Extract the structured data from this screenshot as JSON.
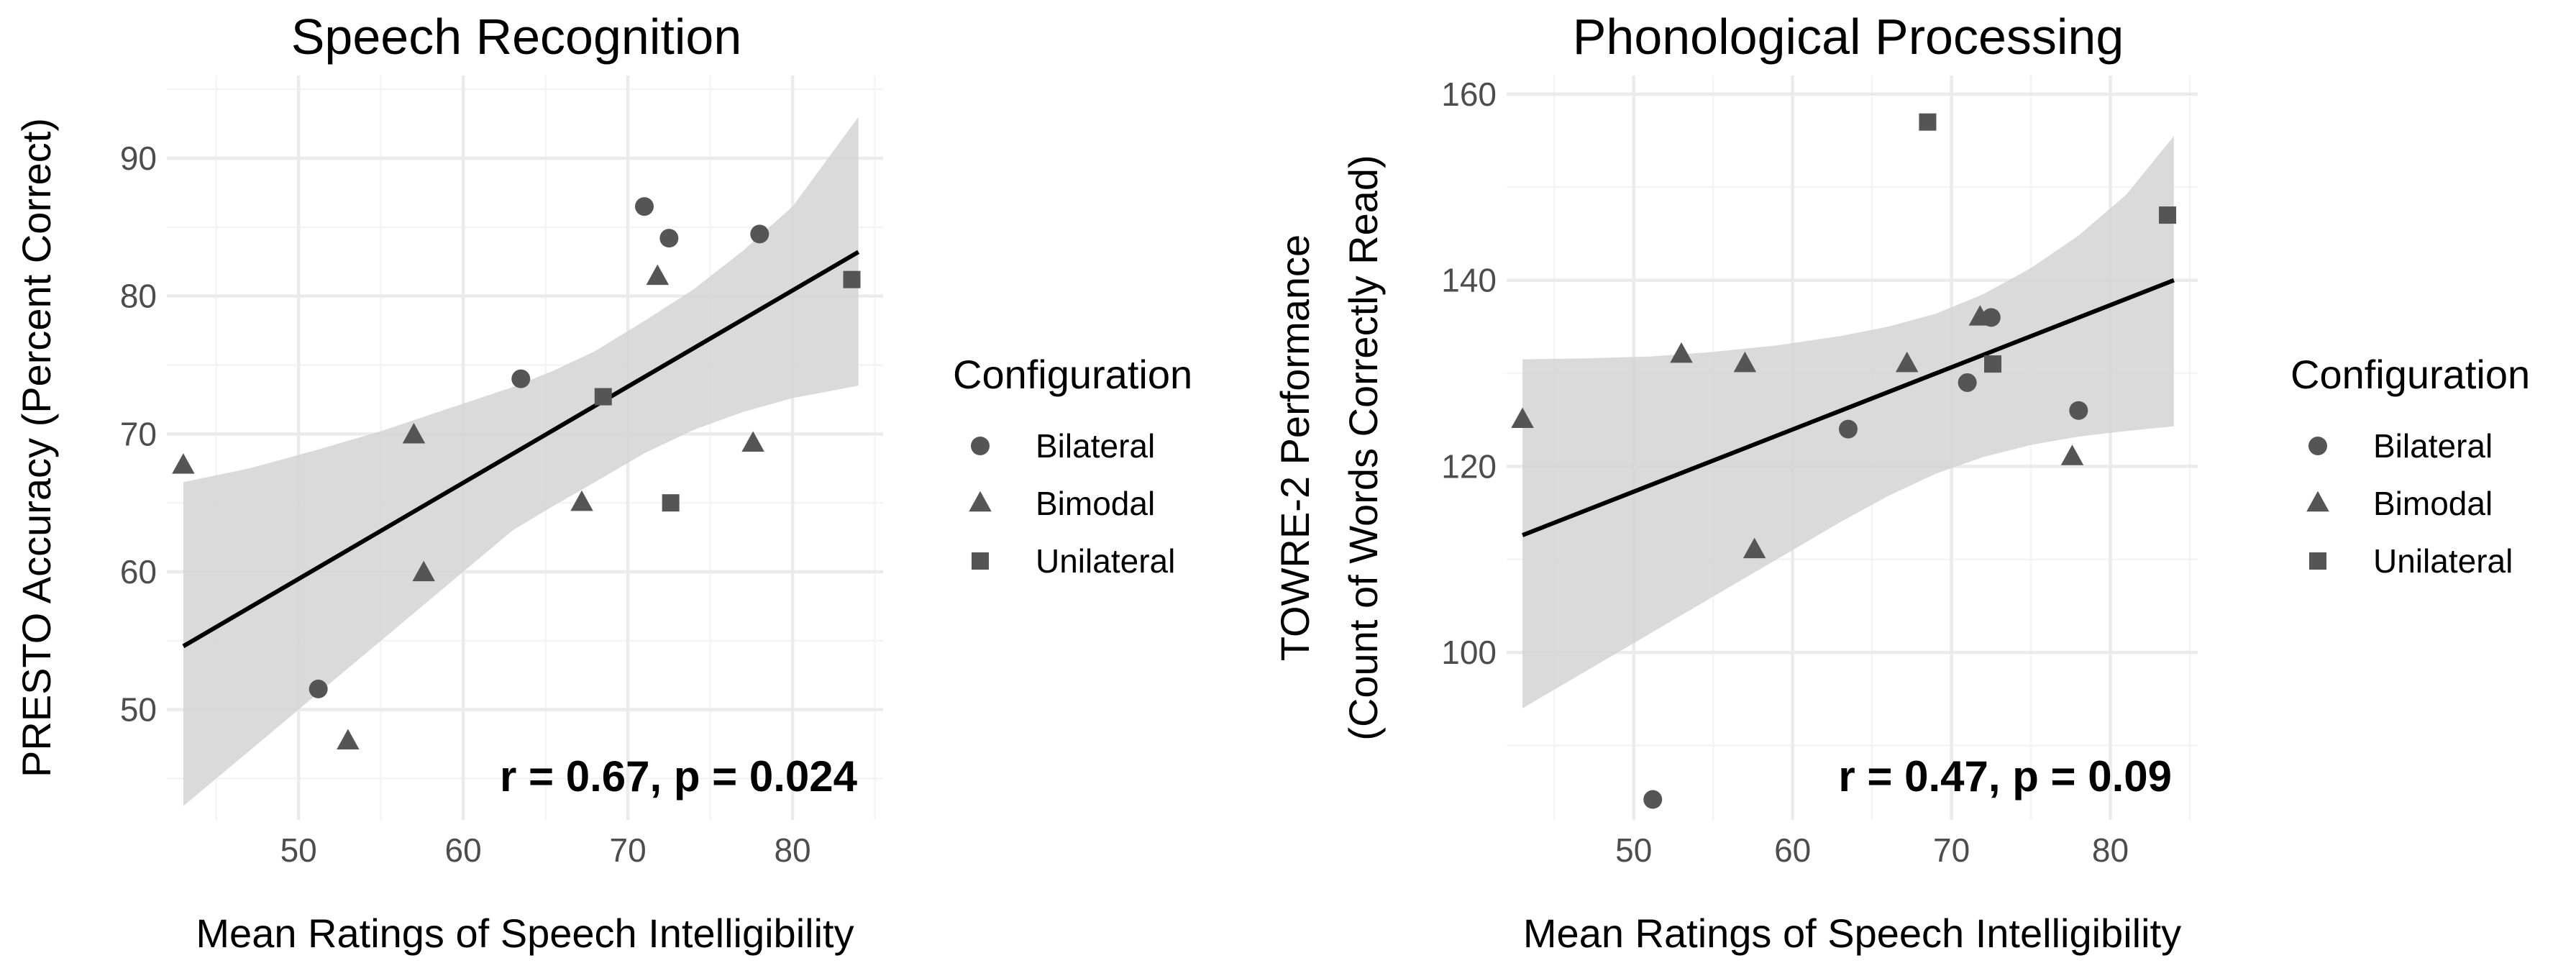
{
  "legend": {
    "title": "Configuration",
    "items": [
      {
        "label": "Bilateral",
        "shape": "circle"
      },
      {
        "label": "Bimodal",
        "shape": "triangle"
      },
      {
        "label": "Unilateral",
        "shape": "square"
      }
    ]
  },
  "colors": {
    "point": "#555555",
    "line": "#000000",
    "ribbon": "#d3d3d3",
    "grid_major": "#ebebeb",
    "grid_minor": "#f4f4f4",
    "tick_text": "#4d4d4d"
  },
  "chart_data": [
    {
      "type": "scatter",
      "title": "Speech Recognition",
      "xlabel": "Mean Ratings of Speech Intelligibility",
      "ylabel": [
        "PRESTO Accuracy (Percent Correct)"
      ],
      "xlim": [
        42,
        85.5
      ],
      "ylim": [
        42,
        96
      ],
      "xticks": [
        50,
        60,
        70,
        80
      ],
      "yticks": [
        50,
        60,
        70,
        80,
        90
      ],
      "xminor": [
        45,
        55,
        65,
        75,
        85
      ],
      "yminor": [
        45,
        55,
        65,
        75,
        85,
        95
      ],
      "annotation": "r = 0.67, p = 0.024",
      "fit": {
        "x": [
          43,
          84
        ],
        "y": [
          54.6,
          83.2
        ]
      },
      "ribbon": {
        "x": [
          43,
          47,
          51,
          55,
          59,
          63,
          65.5,
          68,
          71,
          74,
          77,
          80,
          84
        ],
        "upper": [
          66.5,
          67.5,
          68.8,
          70.2,
          71.8,
          73.4,
          74.6,
          76.0,
          78.2,
          80.5,
          83.3,
          86.5,
          93.0
        ],
        "lower": [
          43.0,
          47.0,
          51.0,
          55.0,
          59.0,
          63.0,
          64.8,
          66.5,
          68.6,
          70.3,
          71.6,
          72.6,
          73.5
        ]
      },
      "points": [
        {
          "x": 43.0,
          "y": 67.7,
          "group": "Bimodal"
        },
        {
          "x": 51.2,
          "y": 51.5,
          "group": "Bilateral"
        },
        {
          "x": 53.0,
          "y": 47.7,
          "group": "Bimodal"
        },
        {
          "x": 57.0,
          "y": 69.9,
          "group": "Bimodal"
        },
        {
          "x": 57.6,
          "y": 59.9,
          "group": "Bimodal"
        },
        {
          "x": 63.5,
          "y": 74.0,
          "group": "Bilateral"
        },
        {
          "x": 67.2,
          "y": 65.0,
          "group": "Bimodal"
        },
        {
          "x": 68.5,
          "y": 72.7,
          "group": "Unilateral"
        },
        {
          "x": 71.0,
          "y": 86.5,
          "group": "Bilateral"
        },
        {
          "x": 71.8,
          "y": 81.4,
          "group": "Bimodal"
        },
        {
          "x": 72.5,
          "y": 84.2,
          "group": "Bilateral"
        },
        {
          "x": 72.6,
          "y": 65.0,
          "group": "Unilateral"
        },
        {
          "x": 77.6,
          "y": 69.3,
          "group": "Bimodal"
        },
        {
          "x": 78.0,
          "y": 84.5,
          "group": "Bilateral"
        },
        {
          "x": 83.6,
          "y": 81.2,
          "group": "Unilateral"
        }
      ]
    },
    {
      "type": "scatter",
      "title": "Phonological Processing",
      "xlabel": "Mean Ratings of Speech Intelligibility",
      "ylabel": [
        "TOWRE-2 Performance",
        "(Count of Words Correctly Read)"
      ],
      "xlim": [
        42,
        85.5
      ],
      "ylim": [
        82,
        162
      ],
      "xticks": [
        50,
        60,
        70,
        80
      ],
      "yticks": [
        100,
        120,
        140,
        160
      ],
      "xminor": [
        45,
        55,
        65,
        75,
        85
      ],
      "yminor": [
        90,
        110,
        130,
        150
      ],
      "annotation": "r = 0.47, p = 0.09",
      "fit": {
        "x": [
          43,
          84
        ],
        "y": [
          112.6,
          140.0
        ]
      },
      "ribbon": {
        "x": [
          43,
          47,
          51,
          55,
          59,
          63,
          66,
          69,
          72,
          75,
          78,
          81,
          84
        ],
        "upper": [
          131.5,
          131.6,
          131.8,
          132.3,
          133.0,
          134.0,
          135.0,
          136.4,
          138.5,
          141.3,
          144.8,
          149.2,
          155.5
        ],
        "lower": [
          94.0,
          98.0,
          102.0,
          106.0,
          110.0,
          114.0,
          116.8,
          119.2,
          121.0,
          122.3,
          123.2,
          123.8,
          124.3
        ]
      },
      "points": [
        {
          "x": 43.0,
          "y": 125.0,
          "group": "Bimodal"
        },
        {
          "x": 51.2,
          "y": 84.2,
          "group": "Bilateral"
        },
        {
          "x": 53.0,
          "y": 132.0,
          "group": "Bimodal"
        },
        {
          "x": 57.0,
          "y": 131.0,
          "group": "Bimodal"
        },
        {
          "x": 57.6,
          "y": 111.0,
          "group": "Bimodal"
        },
        {
          "x": 63.5,
          "y": 124.0,
          "group": "Bilateral"
        },
        {
          "x": 67.2,
          "y": 131.0,
          "group": "Bimodal"
        },
        {
          "x": 68.5,
          "y": 157.0,
          "group": "Unilateral"
        },
        {
          "x": 71.0,
          "y": 129.0,
          "group": "Bilateral"
        },
        {
          "x": 71.8,
          "y": 136.0,
          "group": "Bimodal"
        },
        {
          "x": 72.5,
          "y": 136.0,
          "group": "Bilateral"
        },
        {
          "x": 72.6,
          "y": 131.0,
          "group": "Unilateral"
        },
        {
          "x": 77.6,
          "y": 121.0,
          "group": "Bimodal"
        },
        {
          "x": 78.0,
          "y": 126.0,
          "group": "Bilateral"
        },
        {
          "x": 83.6,
          "y": 147.0,
          "group": "Unilateral"
        }
      ]
    }
  ]
}
